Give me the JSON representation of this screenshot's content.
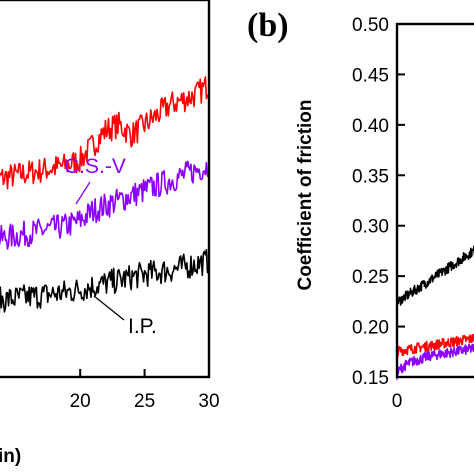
{
  "chart_data": [
    {
      "panel_label": "",
      "type": "line",
      "xlabel": "in)",
      "ylabel": "",
      "xlim": [
        13,
        30
      ],
      "ylim": [
        0.15,
        0.5
      ],
      "x_ticks": [
        20,
        25,
        30
      ],
      "x_tick_labels": [
        "20",
        "25",
        "30"
      ],
      "annotations": [
        {
          "text": "C.S.-V",
          "color": "#8b00ff"
        },
        {
          "text": "I.P.",
          "color": "#000000"
        }
      ],
      "series": [
        {
          "name": "",
          "color": "#ff0000",
          "x": [
            13,
            15,
            17,
            19,
            20,
            21,
            22,
            23,
            24,
            25,
            26,
            27,
            28,
            29,
            30
          ],
          "y": [
            0.345,
            0.35,
            0.355,
            0.36,
            0.365,
            0.38,
            0.395,
            0.4,
            0.39,
            0.4,
            0.41,
            0.42,
            0.425,
            0.43,
            0.44
          ]
        },
        {
          "name": "C.S.-V",
          "color": "#8b00ff",
          "x": [
            13,
            15,
            17,
            19,
            20,
            21,
            22,
            23,
            24,
            25,
            26,
            27,
            28,
            29,
            30
          ],
          "y": [
            0.285,
            0.29,
            0.295,
            0.3,
            0.305,
            0.315,
            0.32,
            0.325,
            0.33,
            0.335,
            0.34,
            0.345,
            0.35,
            0.355,
            0.36
          ]
        },
        {
          "name": "I.P.",
          "color": "#000000",
          "x": [
            13,
            15,
            17,
            19,
            20,
            21,
            22,
            23,
            24,
            25,
            26,
            27,
            28,
            29,
            30
          ],
          "y": [
            0.225,
            0.228,
            0.231,
            0.234,
            0.237,
            0.24,
            0.243,
            0.246,
            0.249,
            0.252,
            0.254,
            0.256,
            0.259,
            0.262,
            0.265
          ]
        }
      ]
    },
    {
      "panel_label": "(b)",
      "type": "line",
      "xlabel": "",
      "ylabel": "Coefficient of friction",
      "xlim": [
        0,
        3
      ],
      "ylim": [
        0.15,
        0.5
      ],
      "x_ticks": [
        0
      ],
      "x_tick_labels": [
        "0"
      ],
      "y_ticks": [
        0.15,
        0.2,
        0.25,
        0.3,
        0.35,
        0.4,
        0.45,
        0.5
      ],
      "y_tick_labels": [
        "0.15",
        "0.20",
        "0.25",
        "0.30",
        "0.35",
        "0.40",
        "0.45",
        "0.50"
      ],
      "series": [
        {
          "name": "",
          "color": "#000000",
          "x": [
            0,
            0.02,
            0.1,
            0.3,
            0.5,
            0.7,
            0.9,
            1.1,
            1.3,
            1.5,
            1.7,
            1.9,
            2.1,
            2.3,
            2.5,
            2.7,
            2.9,
            3.0
          ],
          "y": [
            0.22,
            0.225,
            0.226,
            0.23,
            0.234,
            0.238,
            0.242,
            0.246,
            0.25,
            0.254,
            0.258,
            0.262,
            0.266,
            0.27,
            0.274,
            0.278,
            0.282,
            0.284
          ]
        },
        {
          "name": "",
          "color": "#ff0000",
          "x": [
            0,
            0.1,
            0.3,
            0.5,
            0.7,
            0.9,
            1.1,
            1.3,
            1.5,
            1.7,
            1.9,
            2.1,
            2.3,
            2.5,
            2.7,
            2.9,
            3.0
          ],
          "y": [
            0.175,
            0.176,
            0.177,
            0.178,
            0.179,
            0.18,
            0.181,
            0.182,
            0.183,
            0.184,
            0.185,
            0.186,
            0.187,
            0.188,
            0.189,
            0.19,
            0.191
          ]
        },
        {
          "name": "",
          "color": "#8b00ff",
          "x": [
            0,
            0.1,
            0.3,
            0.5,
            0.7,
            0.9,
            1.1,
            1.3,
            1.5,
            1.7,
            1.9,
            2.1,
            2.3,
            2.5,
            2.7,
            2.9,
            3.0
          ],
          "y": [
            0.152,
            0.158,
            0.162,
            0.165,
            0.167,
            0.169,
            0.171,
            0.172,
            0.173,
            0.174,
            0.175,
            0.176,
            0.177,
            0.178,
            0.179,
            0.18,
            0.181
          ]
        }
      ]
    }
  ]
}
